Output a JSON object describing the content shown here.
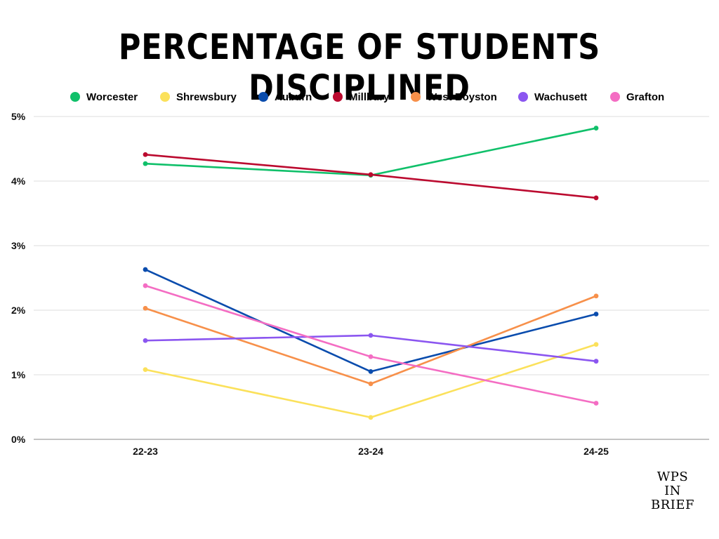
{
  "title": "PERCENTAGE OF STUDENTS DISCIPLINED",
  "logo": {
    "line1": "WPS",
    "line2": "IN",
    "line3": "BRIEF"
  },
  "chart_data": {
    "type": "line",
    "title": "PERCENTAGE OF STUDENTS DISCIPLINED",
    "xlabel": "",
    "ylabel": "",
    "categories": [
      "22-23",
      "23-24",
      "24-25"
    ],
    "ylim": [
      0,
      5
    ],
    "yticks": [
      "0%",
      "1%",
      "2%",
      "3%",
      "4%",
      "5%"
    ],
    "grid": true,
    "legend_position": "top",
    "series": [
      {
        "name": "Worcester",
        "color": "#10c06a",
        "values": [
          4.27,
          4.09,
          4.82
        ]
      },
      {
        "name": "Shrewsbury",
        "color": "#fbe15b",
        "values": [
          1.08,
          0.34,
          1.47
        ]
      },
      {
        "name": "Auburn",
        "color": "#0a4cad",
        "values": [
          2.63,
          1.05,
          1.94
        ]
      },
      {
        "name": "Millbury",
        "color": "#bb0a2f",
        "values": [
          4.41,
          4.1,
          3.74
        ]
      },
      {
        "name": "West Boyston",
        "color": "#f7904a",
        "values": [
          2.03,
          0.86,
          2.22
        ]
      },
      {
        "name": "Wachusett",
        "color": "#8b56f0",
        "values": [
          1.53,
          1.61,
          1.21
        ]
      },
      {
        "name": "Grafton",
        "color": "#f46dc3",
        "values": [
          2.38,
          1.28,
          0.56
        ]
      }
    ]
  }
}
